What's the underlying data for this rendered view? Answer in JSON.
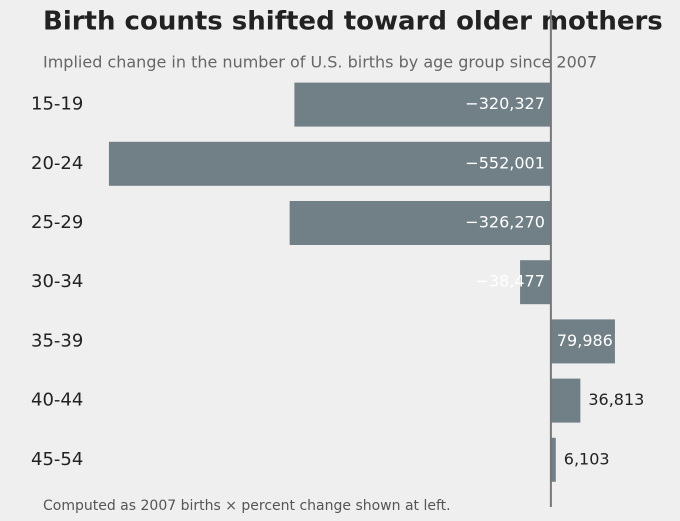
{
  "chart_data": {
    "type": "barh",
    "title": "Birth counts shifted toward older mothers",
    "subtitle": "Implied change in the number of U.S. births by age group since 2007",
    "note": "Computed as 2007 births × percent change shown at left.",
    "categories": [
      "15-19",
      "20-24",
      "25-29",
      "30-34",
      "35-39",
      "40-44",
      "45-54"
    ],
    "values": [
      -320327,
      -552001,
      -326270,
      -38477,
      79986,
      36813,
      6103
    ],
    "value_labels": [
      "−320,327",
      "−552,001",
      "−326,270",
      "−38,477",
      "79,986",
      "36,813",
      "6,103"
    ],
    "color": "#717f87",
    "xlim": [
      -560000,
      160000
    ]
  }
}
